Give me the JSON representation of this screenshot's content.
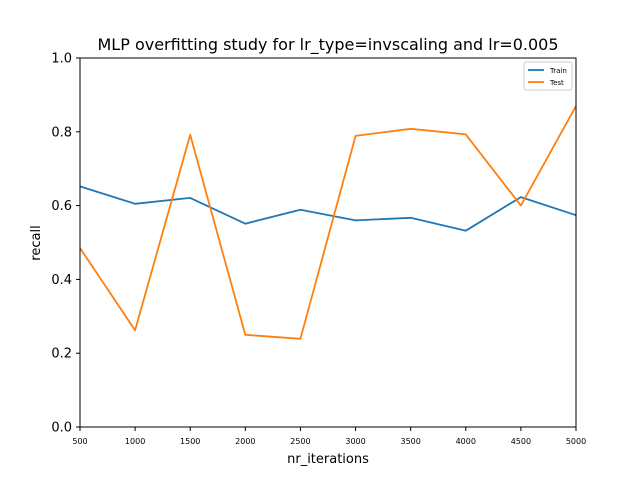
{
  "chart_data": {
    "type": "line",
    "title": "MLP overfitting study for lr_type=invscaling and lr=0.005",
    "xlabel": "nr_iterations",
    "ylabel": "recall",
    "x": [
      500,
      1000,
      1500,
      2000,
      2500,
      3000,
      3500,
      4000,
      4500,
      5000
    ],
    "xlim": [
      500,
      5000
    ],
    "ylim": [
      0.0,
      1.0
    ],
    "xticks": [
      "500",
      "1000",
      "1500",
      "2000",
      "2500",
      "3000",
      "3500",
      "4000",
      "4500",
      "5000"
    ],
    "yticks": [
      "0.0",
      "0.2",
      "0.4",
      "0.6",
      "0.8",
      "1.0"
    ],
    "grid": false,
    "legend_position": "top-right",
    "series": [
      {
        "name": "Train",
        "color": "#1f77b4",
        "values": [
          0.652,
          0.605,
          0.621,
          0.551,
          0.589,
          0.56,
          0.567,
          0.532,
          0.623,
          0.574
        ]
      },
      {
        "name": "Test",
        "color": "#ff7f0e",
        "values": [
          0.485,
          0.262,
          0.792,
          0.25,
          0.239,
          0.789,
          0.808,
          0.793,
          0.6,
          0.87
        ]
      }
    ]
  }
}
